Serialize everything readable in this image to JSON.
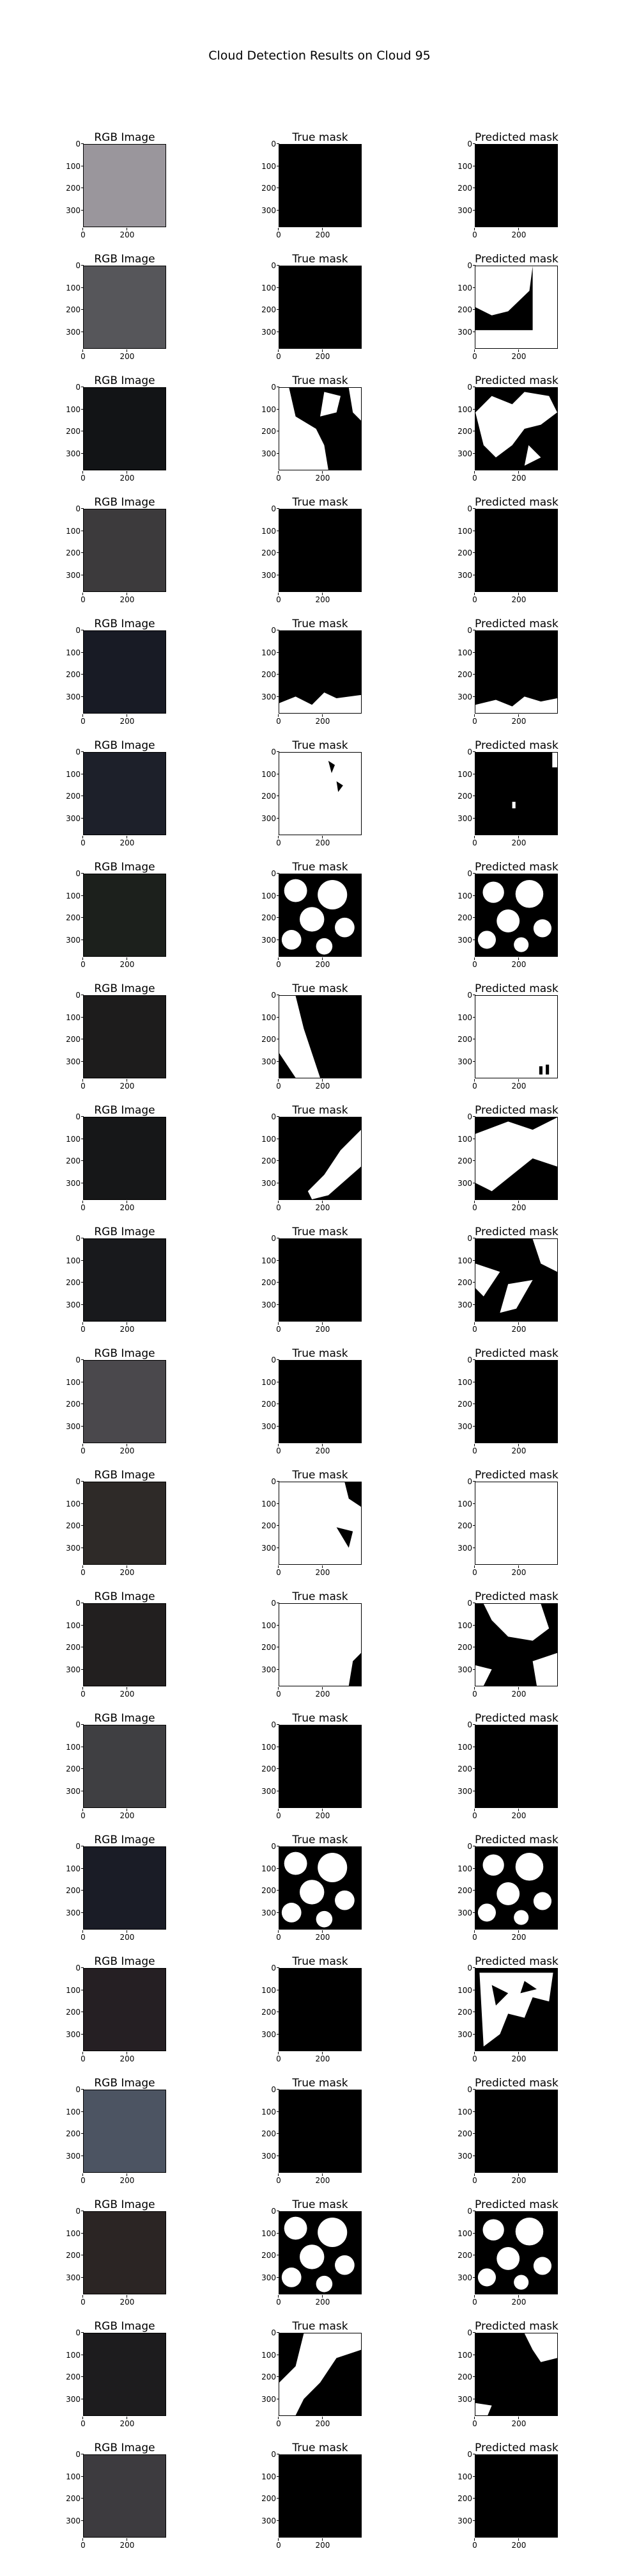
{
  "figure": {
    "title": "Cloud Detection Results on Cloud 95",
    "column_titles": [
      "RGB Image",
      "True mask",
      "Predicted mask"
    ],
    "ytick_labels": [
      "0",
      "100",
      "200",
      "300"
    ],
    "xtick_labels": [
      "0",
      "200"
    ]
  },
  "rows": [
    {
      "rgb": "#9a969c",
      "true": "black",
      "pred": "black"
    },
    {
      "rgb": "#56565a",
      "true": "black",
      "pred": "pred-a"
    },
    {
      "rgb": "#121416",
      "true": "true-a",
      "pred": "pred-b"
    },
    {
      "rgb": "#3c3a3c",
      "true": "black",
      "pred": "black"
    },
    {
      "rgb": "#181b25",
      "true": "true-bottom",
      "pred": "pred-bottom"
    },
    {
      "rgb": "#1d202a",
      "true": "true-white-speck",
      "pred": "pred-black-speck"
    },
    {
      "rgb": "#1c201c",
      "true": "true-clouds",
      "pred": "pred-clouds"
    },
    {
      "rgb": "#1d1c1c",
      "true": "true-diag",
      "pred": "pred-white"
    },
    {
      "rgb": "#161718",
      "true": "true-diag2",
      "pred": "pred-mixed"
    },
    {
      "rgb": "#18191c",
      "true": "black",
      "pred": "pred-streaks"
    },
    {
      "rgb": "#4a484c",
      "true": "black",
      "pred": "black"
    },
    {
      "rgb": "#2e2a28",
      "true": "true-white-left",
      "pred": "white"
    },
    {
      "rgb": "#221f1f",
      "true": "true-white-corner",
      "pred": "pred-mid"
    },
    {
      "rgb": "#3f3f42",
      "true": "black",
      "pred": "black"
    },
    {
      "rgb": "#1a1c26",
      "true": "true-clouds",
      "pred": "pred-clouds"
    },
    {
      "rgb": "#251f23",
      "true": "black",
      "pred": "pred-noise"
    },
    {
      "rgb": "#4c5462",
      "true": "black",
      "pred": "black"
    },
    {
      "rgb": "#2b2524",
      "true": "true-clouds",
      "pred": "pred-clouds"
    },
    {
      "rgb": "#1d1c1e",
      "true": "true-top-right",
      "pred": "pred-top-right"
    },
    {
      "rgb": "#3d3b3f",
      "true": "black",
      "pred": "black"
    }
  ]
}
